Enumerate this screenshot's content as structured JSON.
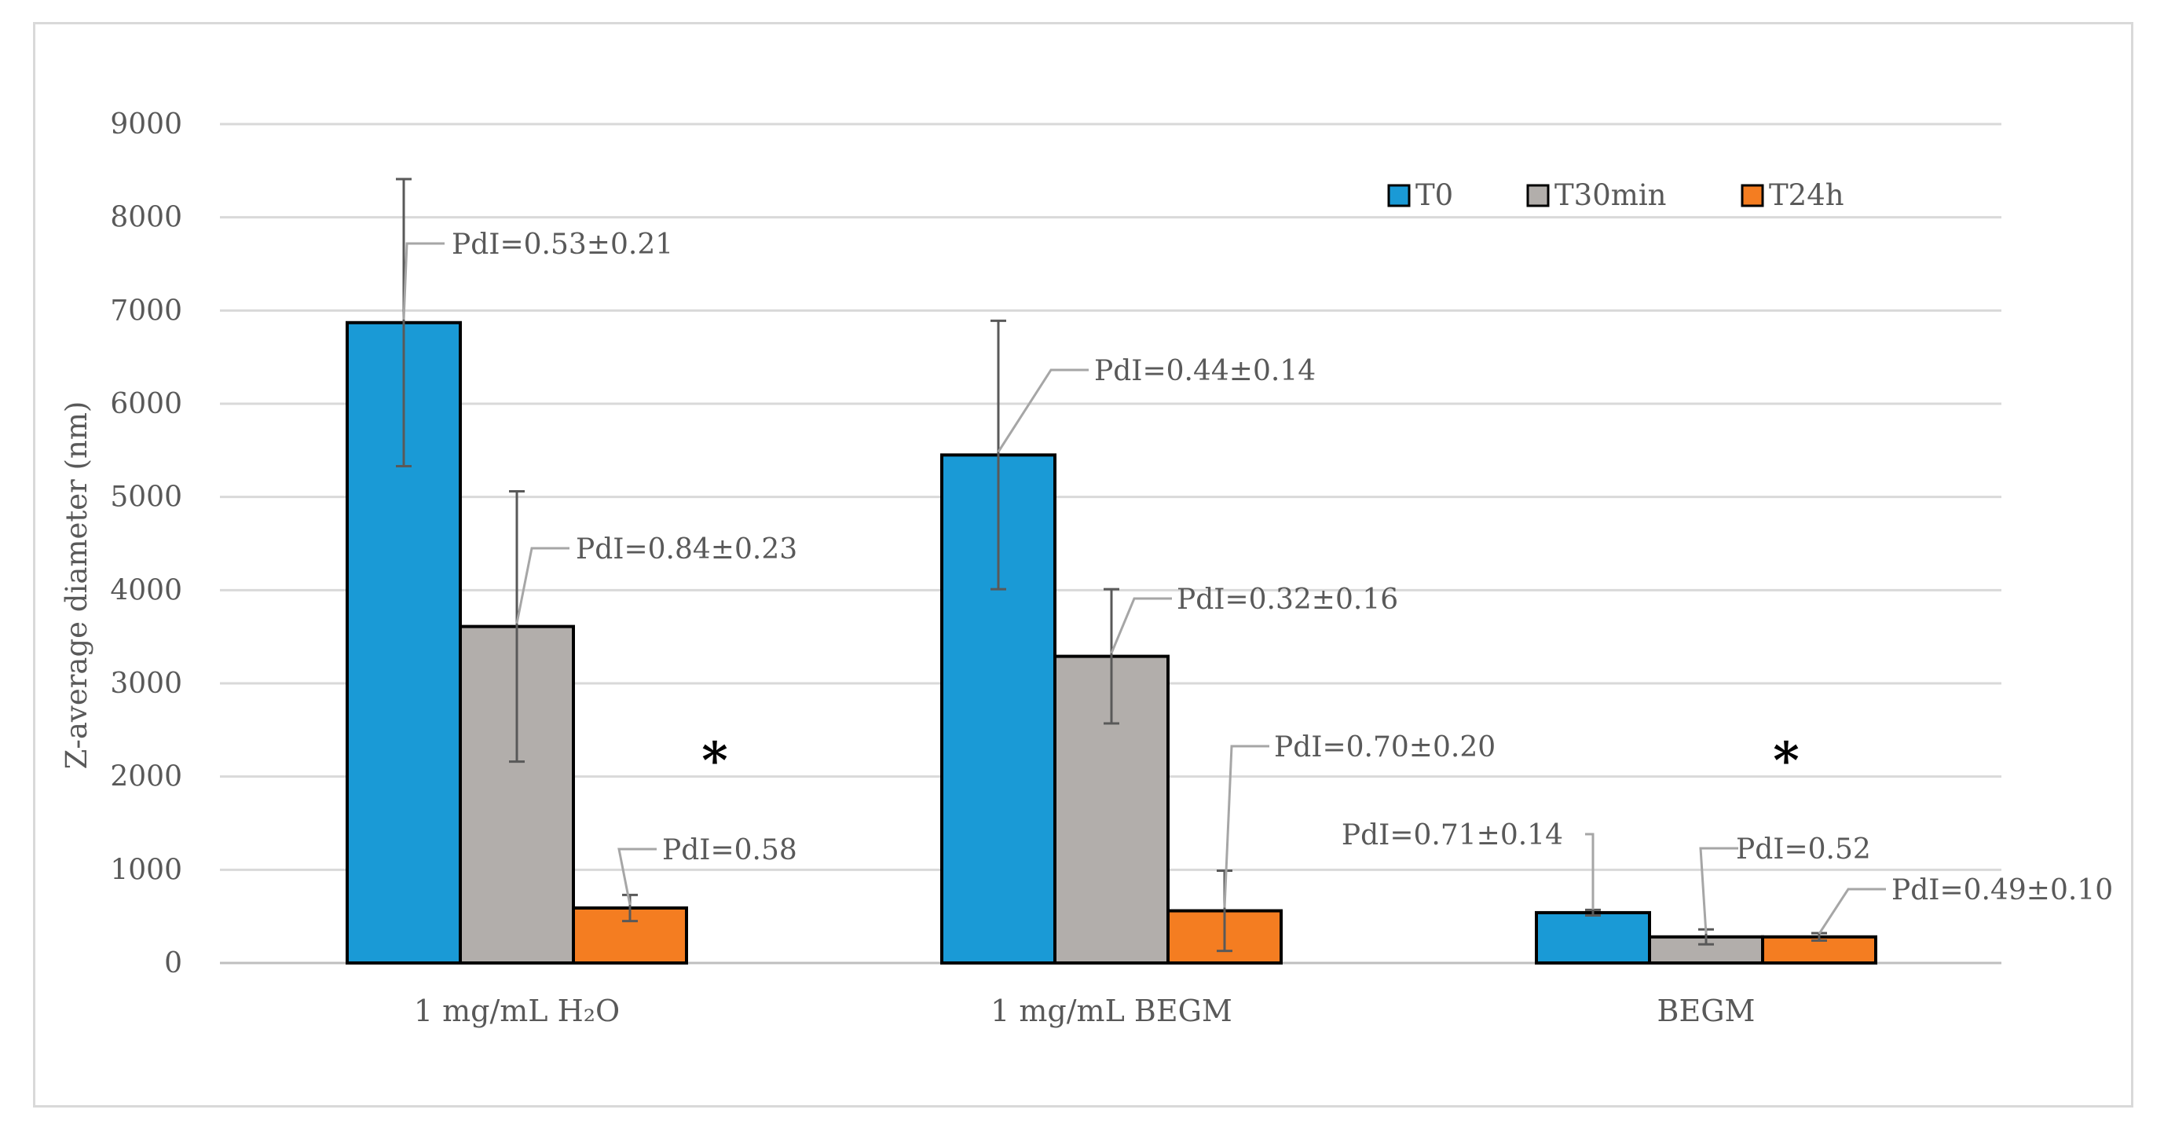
{
  "chart_data": {
    "type": "bar",
    "title": "",
    "xlabel": "",
    "ylabel": "Z-average diameter (nm)",
    "ylim": [
      0,
      9000
    ],
    "yticks": [
      0,
      1000,
      2000,
      3000,
      4000,
      5000,
      6000,
      7000,
      8000,
      9000
    ],
    "grid": true,
    "legend_position": "top-right",
    "categories": [
      "1 mg/mL H₂O",
      "1 mg/mL BEGM",
      "BEGM"
    ],
    "series": [
      {
        "name": "T0",
        "color": "#1a9ad6",
        "values": [
          6870,
          5450,
          540
        ],
        "errors": [
          1540,
          1440,
          30
        ],
        "pdi_labels": [
          "PdI=0.53±0.21",
          "PdI=0.44±0.14",
          "PdI=0.71±0.14"
        ]
      },
      {
        "name": "T30min",
        "color": "#b2aeab",
        "values": [
          3610,
          3290,
          280
        ],
        "errors": [
          1450,
          720,
          80
        ],
        "pdi_labels": [
          "PdI=0.84±0.23",
          "PdI=0.32±0.16",
          "PdI=0.52"
        ]
      },
      {
        "name": "T24h",
        "color": "#f47d21",
        "values": [
          590,
          560,
          280
        ],
        "errors": [
          140,
          430,
          40
        ],
        "pdi_labels": [
          "PdI=0.58",
          "PdI=0.70±0.20",
          "PdI=0.49±0.10"
        ]
      }
    ],
    "annotations": [
      {
        "category_index": 0,
        "text": "*"
      },
      {
        "category_index": 2,
        "text": "*"
      }
    ]
  }
}
